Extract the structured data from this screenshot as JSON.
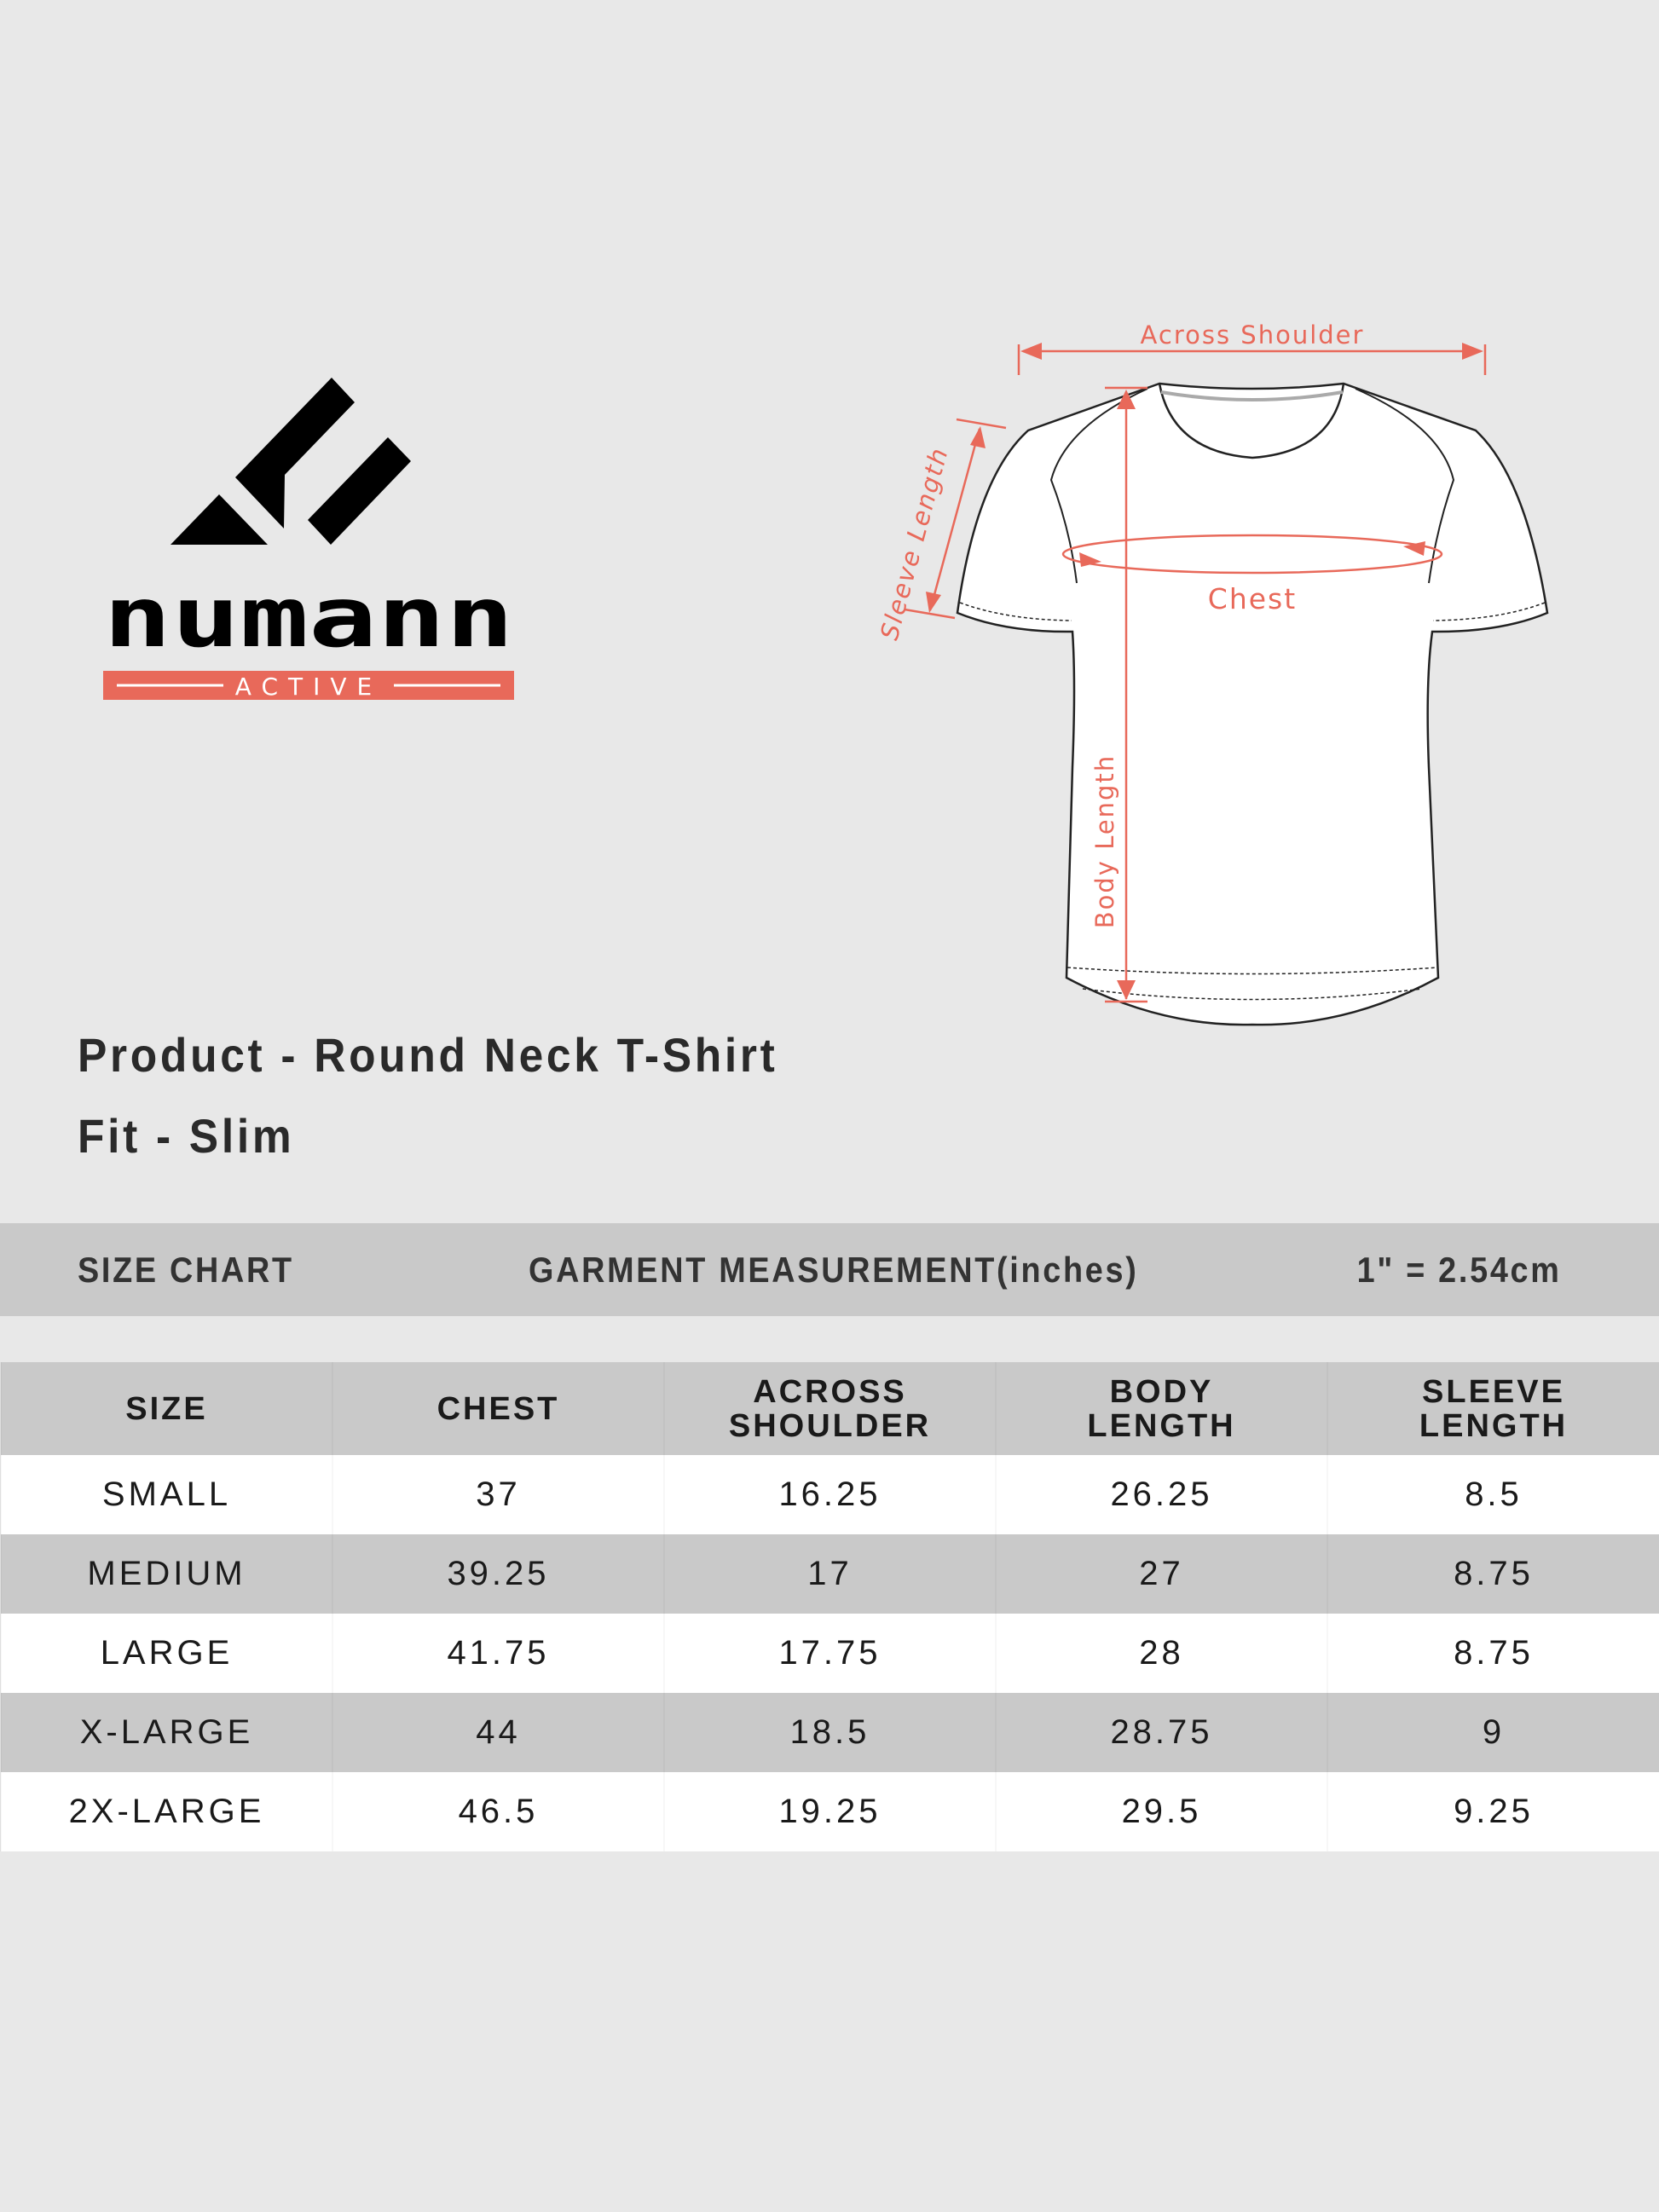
{
  "brand": {
    "name": "numann",
    "tagline": "ACTIVE",
    "accent_color": "#e8695a"
  },
  "diagram": {
    "labels": {
      "across_shoulder": "Across Shoulder",
      "sleeve_length": "Sleeve Length",
      "chest": "Chest",
      "body_length": "Body Length"
    },
    "annotation_color": "#e8695a"
  },
  "product": {
    "line1": "Product - Round Neck T-Shirt",
    "line2": "Fit - Slim"
  },
  "header_bar": {
    "title": "SIZE CHART",
    "measurement": "GARMENT MEASUREMENT(inches)",
    "conversion": "1\" = 2.54cm"
  },
  "table": {
    "columns": [
      [
        "SIZE"
      ],
      [
        "CHEST"
      ],
      [
        "ACROSS",
        "SHOULDER"
      ],
      [
        "BODY",
        "LENGTH"
      ],
      [
        "SLEEVE",
        "LENGTH"
      ]
    ],
    "rows": [
      [
        "SMALL",
        "37",
        "16.25",
        "26.25",
        "8.5"
      ],
      [
        "MEDIUM",
        "39.25",
        "17",
        "27",
        "8.75"
      ],
      [
        "LARGE",
        "41.75",
        "17.75",
        "28",
        "8.75"
      ],
      [
        "X-LARGE",
        "44",
        "18.5",
        "28.75",
        "9"
      ],
      [
        "2X-LARGE",
        "46.5",
        "19.25",
        "29.5",
        "9.25"
      ]
    ]
  }
}
